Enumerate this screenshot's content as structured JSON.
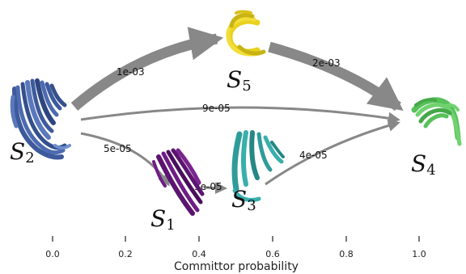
{
  "states": [
    {
      "id": "S2",
      "base": "S",
      "sub": "2",
      "color": "#3d5a9c"
    },
    {
      "id": "S5",
      "base": "S",
      "sub": "5",
      "color": "#e9d21f"
    },
    {
      "id": "S1",
      "base": "S",
      "sub": "1",
      "color": "#5b1470"
    },
    {
      "id": "S3",
      "base": "S",
      "sub": "3",
      "color": "#2f9c9a"
    },
    {
      "id": "S4",
      "base": "S",
      "sub": "4",
      "color": "#58c15a"
    }
  ],
  "transitions": [
    {
      "from": "S2",
      "to": "S5",
      "rate": "1e-03"
    },
    {
      "from": "S5",
      "to": "S4",
      "rate": "2e-03"
    },
    {
      "from": "S2",
      "to": "S4",
      "rate": "9e-05"
    },
    {
      "from": "S2",
      "to": "S1",
      "rate": "5e-05"
    },
    {
      "from": "S1",
      "to": "S3",
      "rate": "3e-05"
    },
    {
      "from": "S3",
      "to": "S4",
      "rate": "4e-05"
    }
  ],
  "axis": {
    "title": "Committor probability",
    "ticks": [
      "0.0",
      "0.2",
      "0.4",
      "0.6",
      "0.8",
      "1.0"
    ]
  },
  "colors": {
    "arrow": "#888888"
  }
}
